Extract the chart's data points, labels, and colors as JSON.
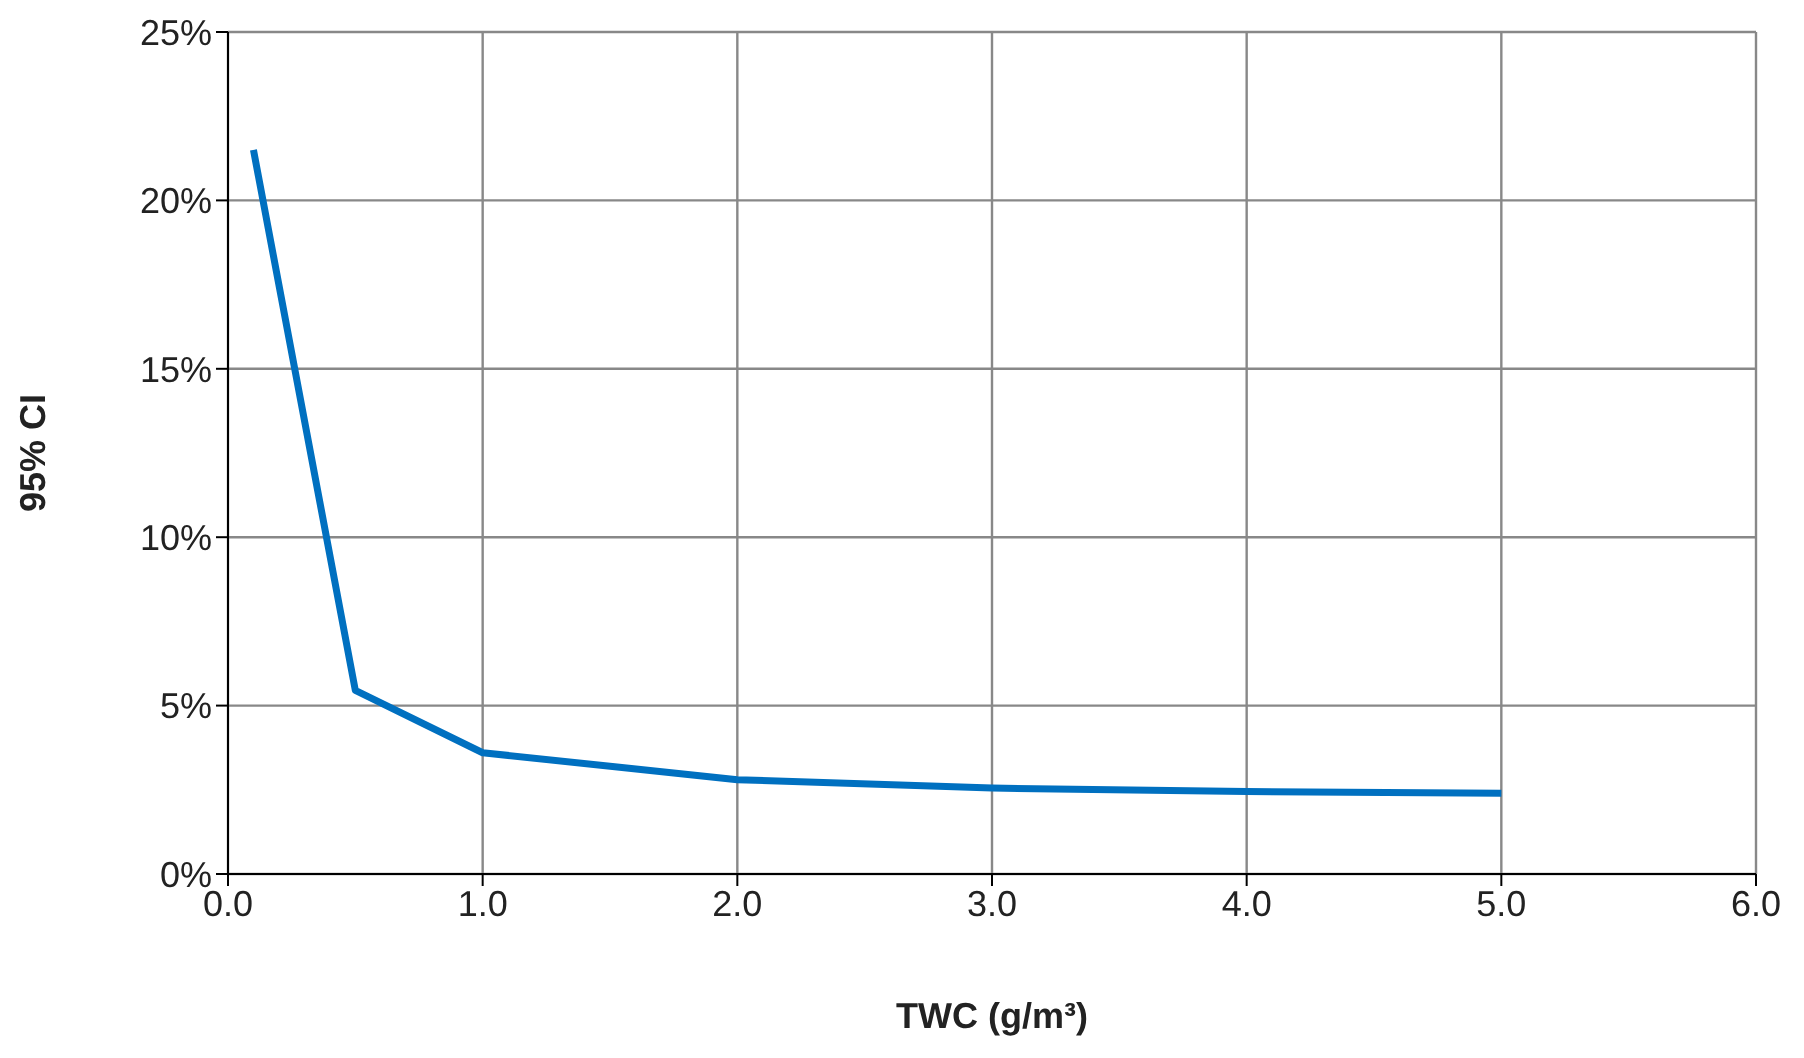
{
  "chart_data": {
    "type": "line",
    "xlabel": "TWC (g/m³)",
    "ylabel": "95% CI",
    "x": [
      0.1,
      0.5,
      1.0,
      2.0,
      3.0,
      4.0,
      5.0
    ],
    "series": [
      {
        "color": "#0070c0",
        "values": [
          21.5,
          5.45,
          3.6,
          2.8,
          2.55,
          2.45,
          2.4
        ]
      }
    ],
    "xlim": [
      0,
      6
    ],
    "xticks": [
      {
        "value": 0,
        "label": "0.0"
      },
      {
        "value": 1,
        "label": "1.0"
      },
      {
        "value": 2,
        "label": "2.0"
      },
      {
        "value": 3,
        "label": "3.0"
      },
      {
        "value": 4,
        "label": "4.0"
      },
      {
        "value": 5,
        "label": "5.0"
      },
      {
        "value": 6,
        "label": "6.0"
      }
    ],
    "ylim": [
      0,
      25
    ],
    "yticks": [
      {
        "value": 0,
        "label": "0%"
      },
      {
        "value": 5,
        "label": "5%"
      },
      {
        "value": 10,
        "label": "10%"
      },
      {
        "value": 15,
        "label": "15%"
      },
      {
        "value": 20,
        "label": "20%"
      },
      {
        "value": 25,
        "label": "25%"
      }
    ],
    "grid": true,
    "marker": "none",
    "line_style": "solid"
  }
}
